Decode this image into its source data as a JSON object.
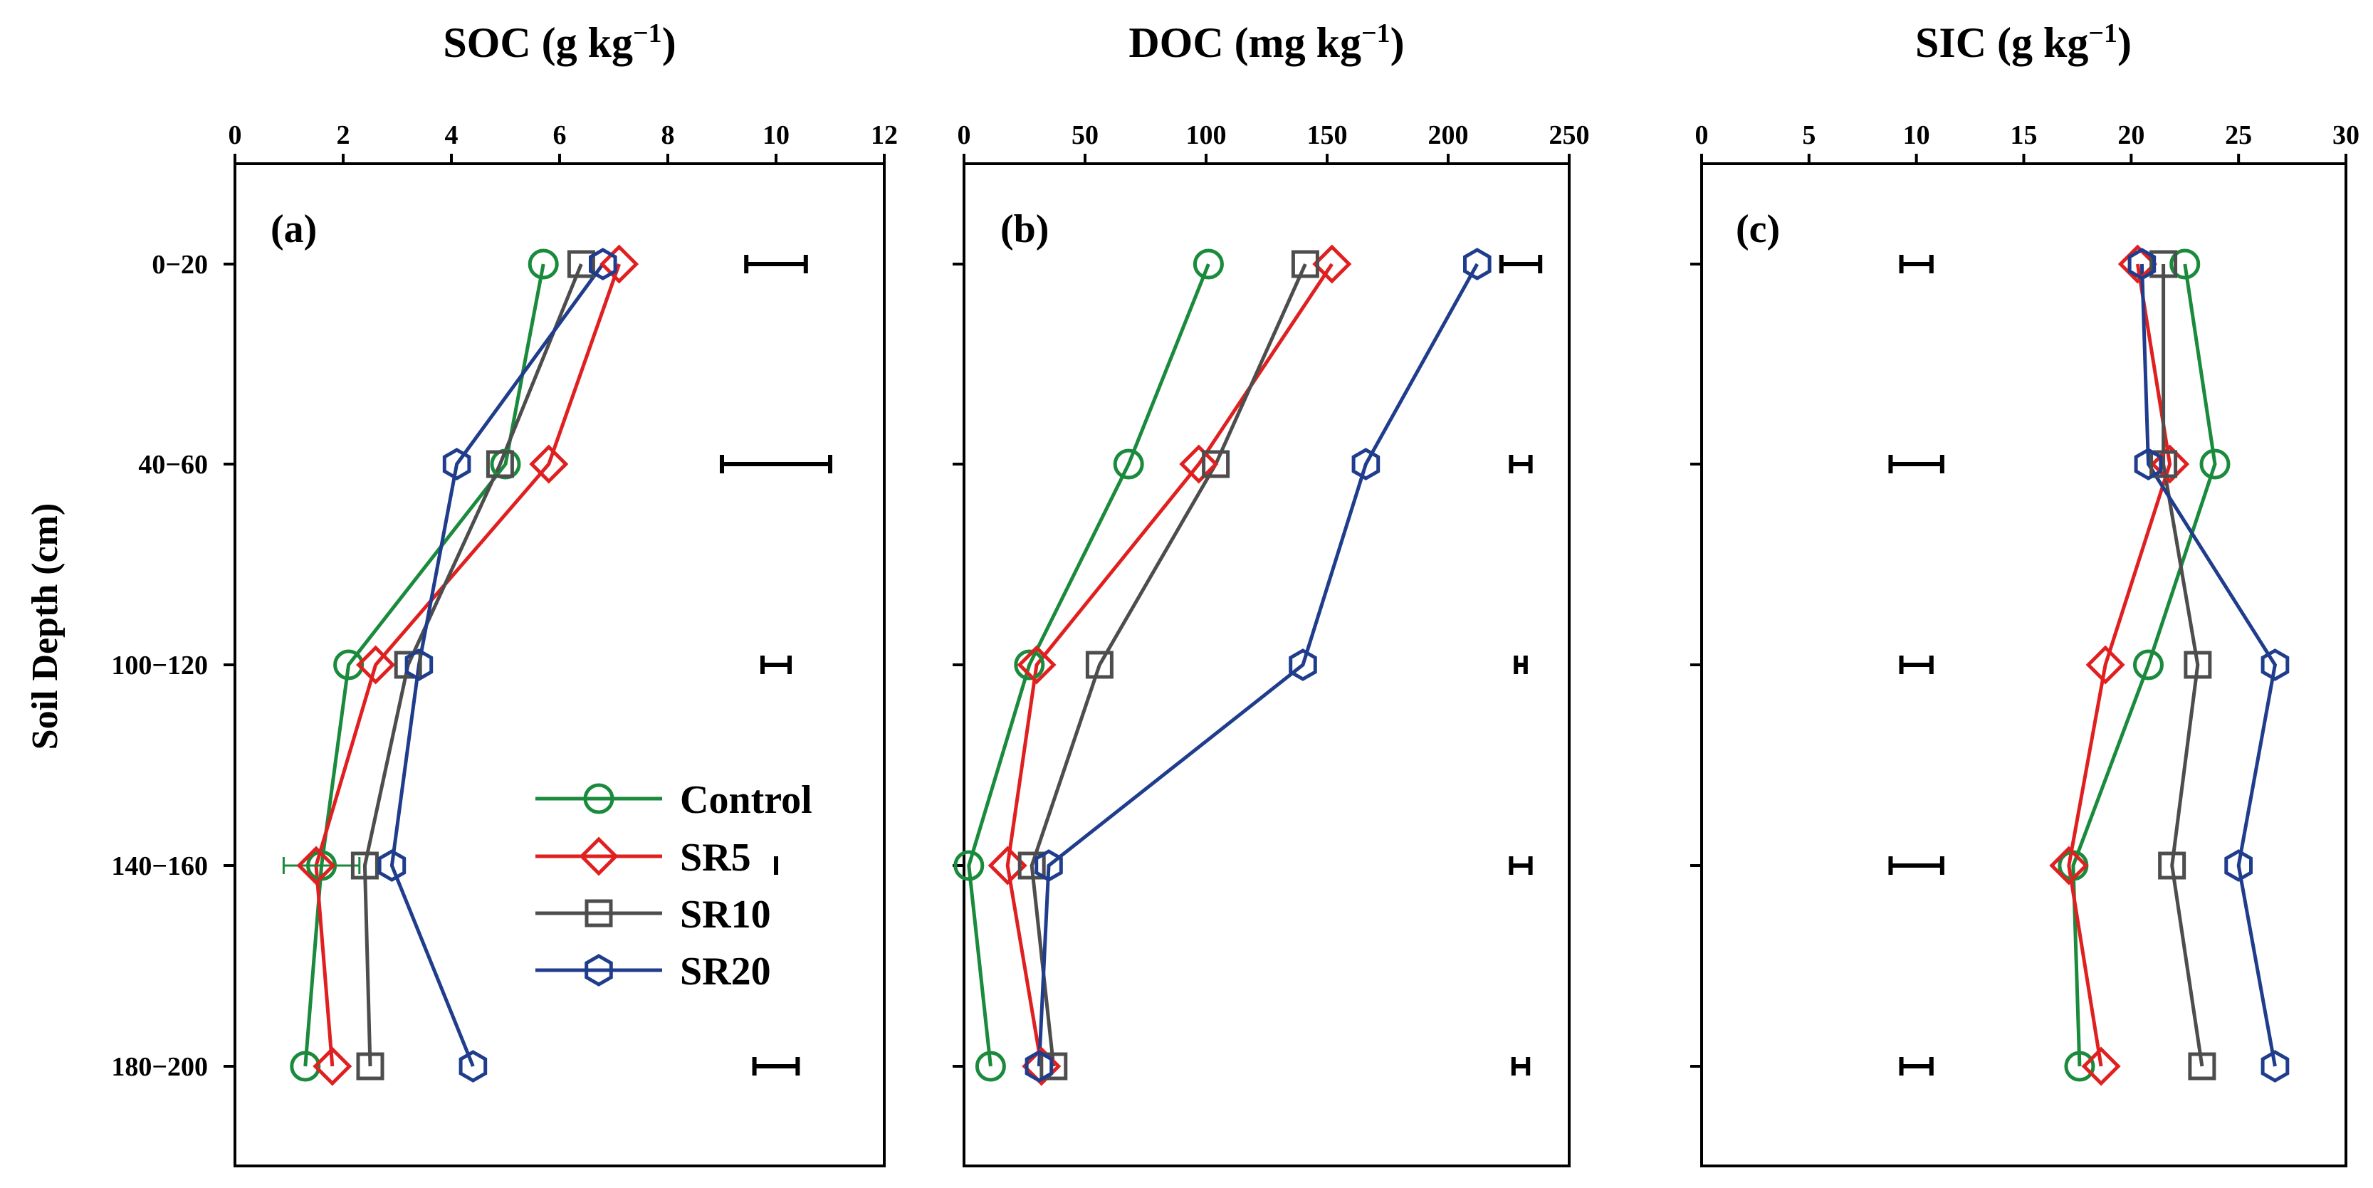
{
  "chart_data": [
    {
      "type": "line",
      "panel": "(a)",
      "title": "SOC (g kg−1)",
      "title_main": "SOC (g kg",
      "title_sup": "−1",
      "title_close": ")",
      "ylabel": "Soil Depth (cm)",
      "xlim": [
        0,
        12
      ],
      "xticks": [
        0,
        2,
        4,
        6,
        8,
        10,
        12
      ],
      "xtick_labels": [
        "0",
        "2",
        "4",
        "6",
        "8",
        "10",
        "12"
      ],
      "depth_labels": [
        "0−20",
        "40−60",
        "100−120",
        "140−160",
        "180−200"
      ],
      "series": [
        {
          "name": "Control",
          "color": "#1a8a3c",
          "marker": "circle",
          "values": [
            5.7,
            5.0,
            2.1,
            1.6,
            1.3
          ]
        },
        {
          "name": "SR5",
          "color": "#e02020",
          "marker": "diamond",
          "values": [
            7.1,
            5.8,
            2.6,
            1.5,
            1.8
          ]
        },
        {
          "name": "SR10",
          "color": "#4d4d4d",
          "marker": "square",
          "values": [
            6.4,
            4.9,
            3.2,
            2.4,
            2.5
          ]
        },
        {
          "name": "SR20",
          "color": "#1f3d8c",
          "marker": "hexagon",
          "values": [
            6.8,
            4.1,
            3.4,
            2.9,
            4.4
          ]
        }
      ],
      "point_error_bars": [
        {
          "series": "Control",
          "depth_index": 3,
          "half_width": 0.7
        }
      ],
      "lsd_bars": [
        {
          "center": 10.0,
          "half_width": 0.55
        },
        {
          "center": 10.0,
          "half_width": 1.0
        },
        {
          "center": 10.0,
          "half_width": 0.25
        },
        {
          "center": 10.0,
          "half_width": 0.0
        },
        {
          "center": 10.0,
          "half_width": 0.4
        }
      ]
    },
    {
      "type": "line",
      "panel": "(b)",
      "title": "DOC (mg kg−1)",
      "title_main": "DOC (mg kg",
      "title_sup": "−1",
      "title_close": ")",
      "xlim": [
        0,
        250
      ],
      "xticks": [
        0,
        50,
        100,
        150,
        200,
        250
      ],
      "xtick_labels": [
        "0",
        "50",
        "100",
        "150",
        "200",
        "250"
      ],
      "series": [
        {
          "name": "Control",
          "color": "#1a8a3c",
          "marker": "circle",
          "values": [
            101,
            68,
            27,
            2,
            11
          ]
        },
        {
          "name": "SR5",
          "color": "#e02020",
          "marker": "diamond",
          "values": [
            152,
            97,
            30,
            18,
            32
          ]
        },
        {
          "name": "SR10",
          "color": "#4d4d4d",
          "marker": "square",
          "values": [
            141,
            104,
            56,
            28,
            37
          ]
        },
        {
          "name": "SR20",
          "color": "#1f3d8c",
          "marker": "hexagon",
          "values": [
            212,
            166,
            140,
            35,
            31
          ]
        }
      ],
      "lsd_bars": [
        {
          "center": 230,
          "half_width": 8
        },
        {
          "center": 230,
          "half_width": 4
        },
        {
          "center": 230,
          "half_width": 2
        },
        {
          "center": 230,
          "half_width": 4
        },
        {
          "center": 230,
          "half_width": 3
        }
      ]
    },
    {
      "type": "line",
      "panel": "(c)",
      "title": "SIC (g kg−1)",
      "title_main": "SIC (g kg",
      "title_sup": "−1",
      "title_close": ")",
      "xlim": [
        0,
        30
      ],
      "xticks": [
        0,
        5,
        10,
        15,
        20,
        25,
        30
      ],
      "xtick_labels": [
        "0",
        "5",
        "10",
        "15",
        "20",
        "25",
        "30"
      ],
      "series": [
        {
          "name": "Control",
          "color": "#1a8a3c",
          "marker": "circle",
          "values": [
            22.5,
            23.9,
            20.8,
            17.3,
            17.6
          ]
        },
        {
          "name": "SR5",
          "color": "#e02020",
          "marker": "diamond",
          "values": [
            20.3,
            21.8,
            18.8,
            17.1,
            18.6
          ]
        },
        {
          "name": "SR10",
          "color": "#4d4d4d",
          "marker": "square",
          "values": [
            21.5,
            21.5,
            23.1,
            21.9,
            23.3
          ]
        },
        {
          "name": "SR20",
          "color": "#1f3d8c",
          "marker": "hexagon",
          "values": [
            20.5,
            20.8,
            26.7,
            25.0,
            26.7
          ]
        }
      ],
      "lsd_bars": [
        {
          "center": 10.0,
          "half_width": 0.7
        },
        {
          "center": 10.0,
          "half_width": 1.2
        },
        {
          "center": 10.0,
          "half_width": 0.7
        },
        {
          "center": 10.0,
          "half_width": 1.2
        },
        {
          "center": 10.0,
          "half_width": 0.7
        }
      ]
    }
  ],
  "legend": {
    "position": "lower-right of panel (a)",
    "items": [
      {
        "label": "Control",
        "color": "#1a8a3c",
        "marker": "circle"
      },
      {
        "label": "SR5",
        "color": "#e02020",
        "marker": "diamond"
      },
      {
        "label": "SR10",
        "color": "#4d4d4d",
        "marker": "square"
      },
      {
        "label": "SR20",
        "color": "#1f3d8c",
        "marker": "hexagon"
      }
    ]
  }
}
